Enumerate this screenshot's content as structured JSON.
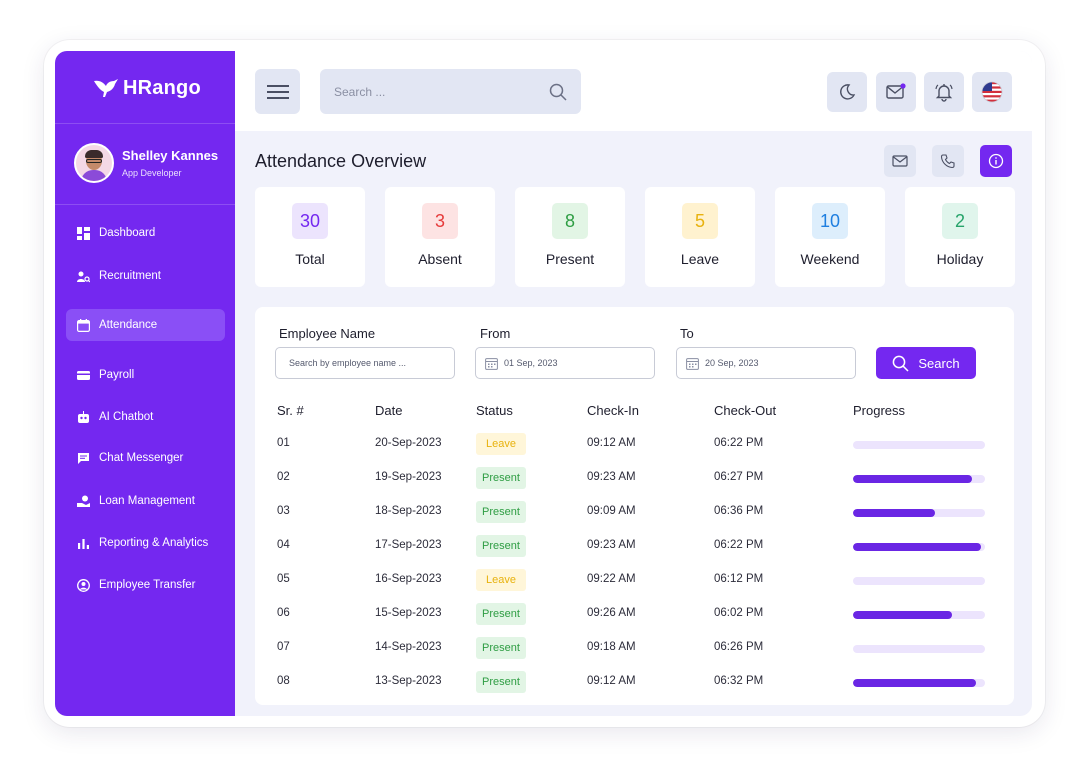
{
  "sidebar": {
    "logo": "HRango",
    "profile": {
      "name": "Shelley Kannes",
      "role": "App Developer"
    },
    "items": [
      {
        "label": "Dashboard",
        "icon": "dashboard-icon"
      },
      {
        "label": "Recruitment",
        "icon": "recruitment-icon"
      },
      {
        "label": "Attendance",
        "icon": "calendar-icon",
        "active": true
      },
      {
        "label": "Payroll",
        "icon": "card-icon"
      },
      {
        "label": "AI Chatbot",
        "icon": "robot-icon"
      },
      {
        "label": "Chat Messenger",
        "icon": "chat-icon"
      },
      {
        "label": "Loan Management",
        "icon": "loan-icon"
      },
      {
        "label": "Reporting & Analytics",
        "icon": "chart-icon"
      },
      {
        "label": "Employee Transfer",
        "icon": "transfer-icon"
      }
    ]
  },
  "header": {
    "search_placeholder": "Search ..."
  },
  "page": {
    "title": "Attendance Overview"
  },
  "stats": [
    {
      "value": "30",
      "label": "Total",
      "color": "#7428f0",
      "bg": "#ece4fd"
    },
    {
      "value": "3",
      "label": "Absent",
      "color": "#e63b3b",
      "bg": "#fde3e3"
    },
    {
      "value": "8",
      "label": "Present",
      "color": "#2e9d43",
      "bg": "#e2f5e5"
    },
    {
      "value": "5",
      "label": "Leave",
      "color": "#e8b20e",
      "bg": "#fff2cf"
    },
    {
      "value": "10",
      "label": "Weekend",
      "color": "#1f7fe0",
      "bg": "#ddeefc"
    },
    {
      "value": "2",
      "label": "Holiday",
      "color": "#26a36a",
      "bg": "#e0f5ec"
    }
  ],
  "filters": {
    "employee_label": "Employee Name",
    "employee_placeholder": "Search by employee name ...",
    "from_label": "From",
    "from_value": "01 Sep, 2023",
    "to_label": "To",
    "to_value": "20 Sep, 2023",
    "search_button": "Search"
  },
  "table": {
    "headers": [
      "Sr. #",
      "Date",
      "Status",
      "Check-In",
      "Check-Out",
      "Progress"
    ],
    "rows": [
      {
        "sr": "01",
        "date": "20-Sep-2023",
        "status": "Leave",
        "in": "09:12 AM",
        "out": "06:22 PM",
        "progress": 0
      },
      {
        "sr": "02",
        "date": "19-Sep-2023",
        "status": "Present",
        "in": "09:23 AM",
        "out": "06:27 PM",
        "progress": 0.9
      },
      {
        "sr": "03",
        "date": "18-Sep-2023",
        "status": "Present",
        "in": "09:09 AM",
        "out": "06:36 PM",
        "progress": 0.62
      },
      {
        "sr": "04",
        "date": "17-Sep-2023",
        "status": "Present",
        "in": "09:23 AM",
        "out": "06:22 PM",
        "progress": 0.97
      },
      {
        "sr": "05",
        "date": "16-Sep-2023",
        "status": "Leave",
        "in": "09:22 AM",
        "out": "06:12 PM",
        "progress": 0
      },
      {
        "sr": "06",
        "date": "15-Sep-2023",
        "status": "Present",
        "in": "09:26 AM",
        "out": "06:02 PM",
        "progress": 0.75
      },
      {
        "sr": "07",
        "date": "14-Sep-2023",
        "status": "Present",
        "in": "09:18 AM",
        "out": "06:26 PM",
        "progress": 0
      },
      {
        "sr": "08",
        "date": "13-Sep-2023",
        "status": "Present",
        "in": "09:12 AM",
        "out": "06:32 PM",
        "progress": 0.93
      }
    ]
  },
  "colors": {
    "accent": "#7428f0",
    "leave": "#e8b20e",
    "present": "#2e9d43"
  }
}
